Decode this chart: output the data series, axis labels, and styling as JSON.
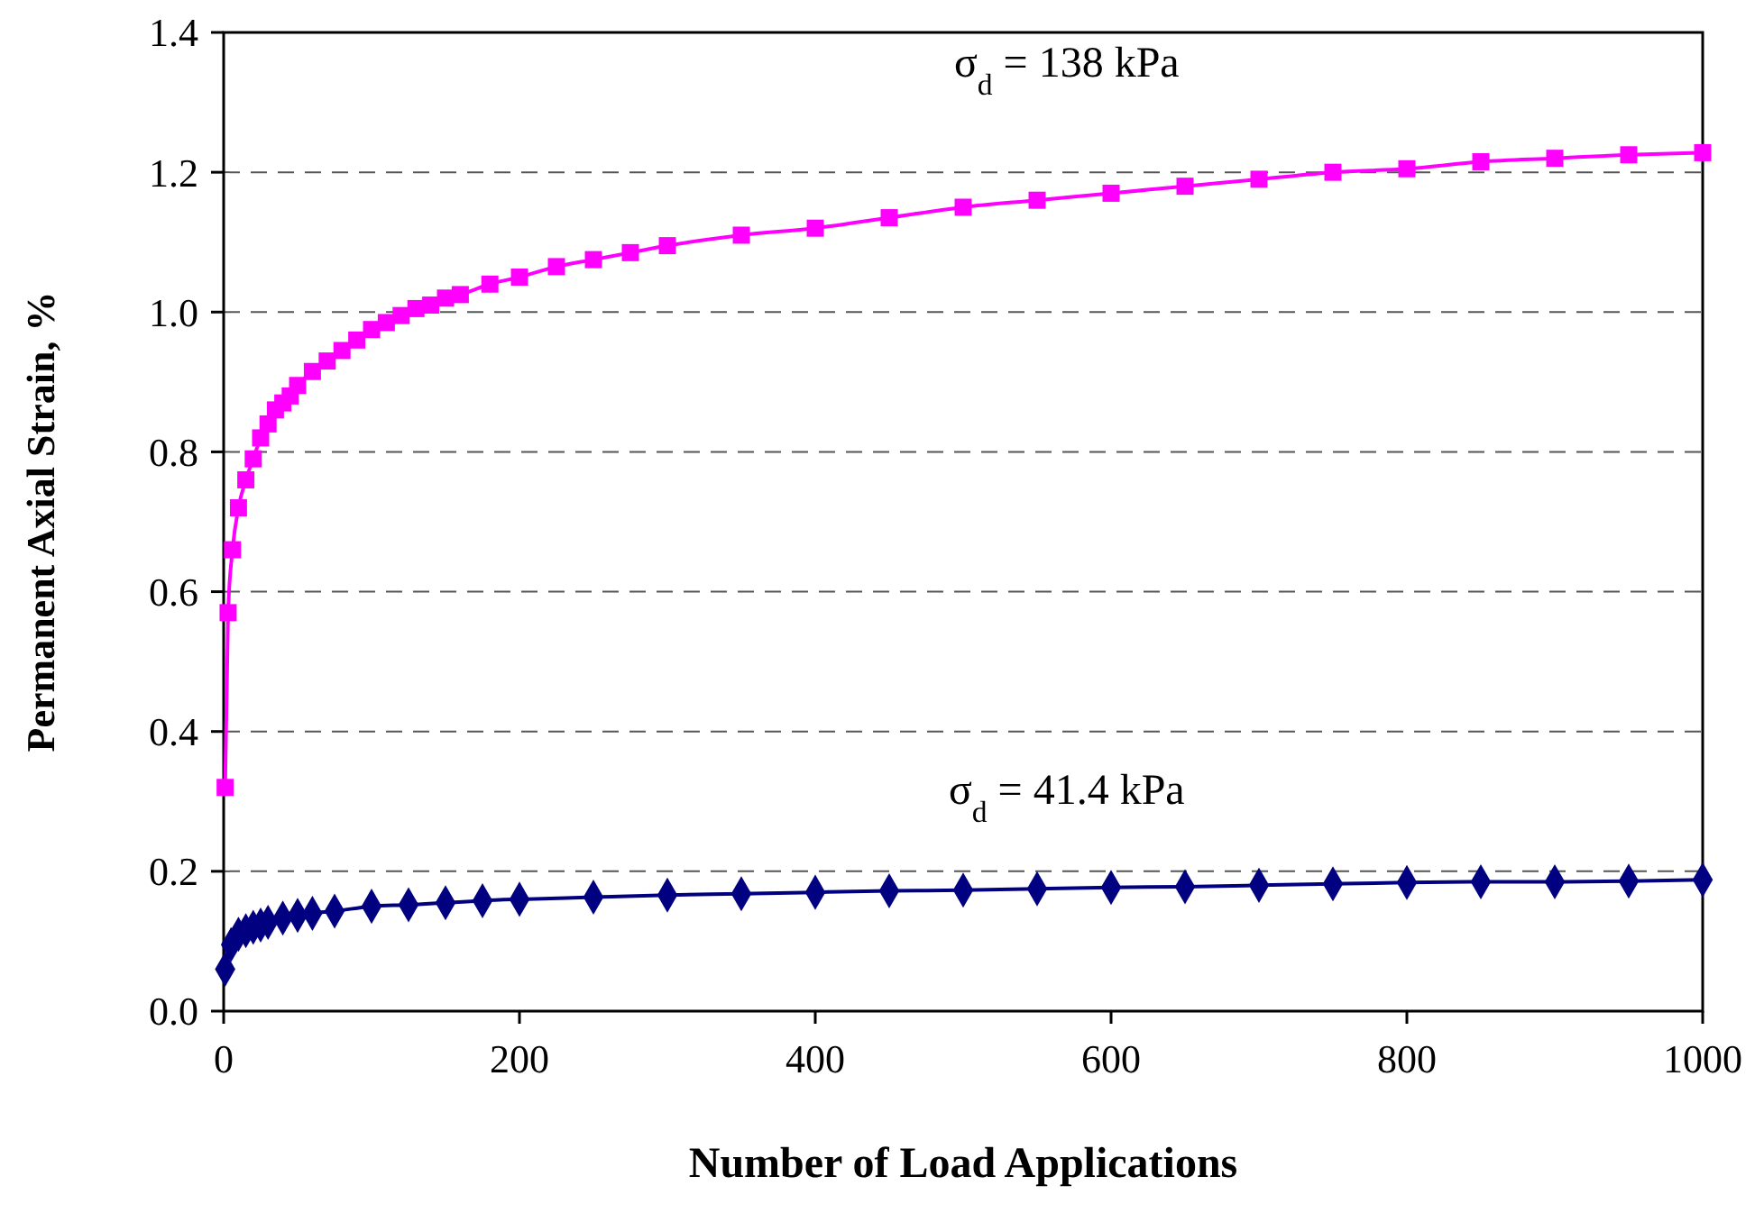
{
  "chart_data": {
    "type": "line",
    "xlabel": "Number of Load Applications",
    "ylabel": "Permanent Axial Strain, %",
    "xlim": [
      0,
      1000
    ],
    "xticks": [
      0,
      200,
      400,
      600,
      800,
      1000
    ],
    "ylim": [
      0,
      1.4
    ],
    "yticks": [
      {
        "value": 0,
        "label": "0.0"
      },
      {
        "value": 0.2,
        "label": "0.2"
      },
      {
        "value": 0.4,
        "label": "0.4"
      },
      {
        "value": 0.6,
        "label": "0.6"
      },
      {
        "value": 0.8,
        "label": "0.8"
      },
      {
        "value": 1,
        "label": "1.0"
      },
      {
        "value": 1.2,
        "label": "1.2"
      },
      {
        "value": 1.4,
        "label": "1.4"
      }
    ],
    "grid": "y",
    "line_style": "solid",
    "series": [
      {
        "color": "#ff00ff",
        "marker": "square",
        "x": [
          1,
          3,
          6,
          10,
          15,
          20,
          25,
          30,
          35,
          40,
          45,
          50,
          60,
          70,
          80,
          90,
          100,
          110,
          120,
          130,
          140,
          150,
          160,
          180,
          200,
          225,
          250,
          275,
          300,
          350,
          400,
          450,
          500,
          550,
          600,
          650,
          700,
          750,
          800,
          850,
          900,
          950,
          1000
        ],
        "values": [
          0.32,
          0.57,
          0.66,
          0.72,
          0.76,
          0.79,
          0.82,
          0.84,
          0.86,
          0.87,
          0.88,
          0.895,
          0.915,
          0.93,
          0.945,
          0.96,
          0.975,
          0.985,
          0.995,
          1.005,
          1.01,
          1.02,
          1.025,
          1.04,
          1.05,
          1.065,
          1.075,
          1.085,
          1.095,
          1.11,
          1.12,
          1.135,
          1.15,
          1.16,
          1.17,
          1.18,
          1.19,
          1.2,
          1.205,
          1.215,
          1.22,
          1.225,
          1.228
        ]
      },
      {
        "color": "#000080",
        "marker": "diamond",
        "x": [
          1,
          5,
          10,
          15,
          20,
          25,
          30,
          40,
          50,
          60,
          75,
          100,
          125,
          150,
          175,
          200,
          250,
          300,
          350,
          400,
          450,
          500,
          550,
          600,
          650,
          700,
          750,
          800,
          850,
          900,
          950,
          1000
        ],
        "values": [
          0.06,
          0.095,
          0.11,
          0.115,
          0.12,
          0.123,
          0.127,
          0.133,
          0.137,
          0.14,
          0.143,
          0.15,
          0.152,
          0.155,
          0.158,
          0.16,
          0.163,
          0.166,
          0.168,
          0.17,
          0.172,
          0.173,
          0.175,
          0.177,
          0.178,
          0.18,
          0.182,
          0.184,
          0.185,
          0.185,
          0.186,
          0.188
        ]
      }
    ],
    "annotations": [
      "σ$_{d}$ = 138 kPa",
      "σ$_{d}$ = 41.4 kPa"
    ]
  }
}
